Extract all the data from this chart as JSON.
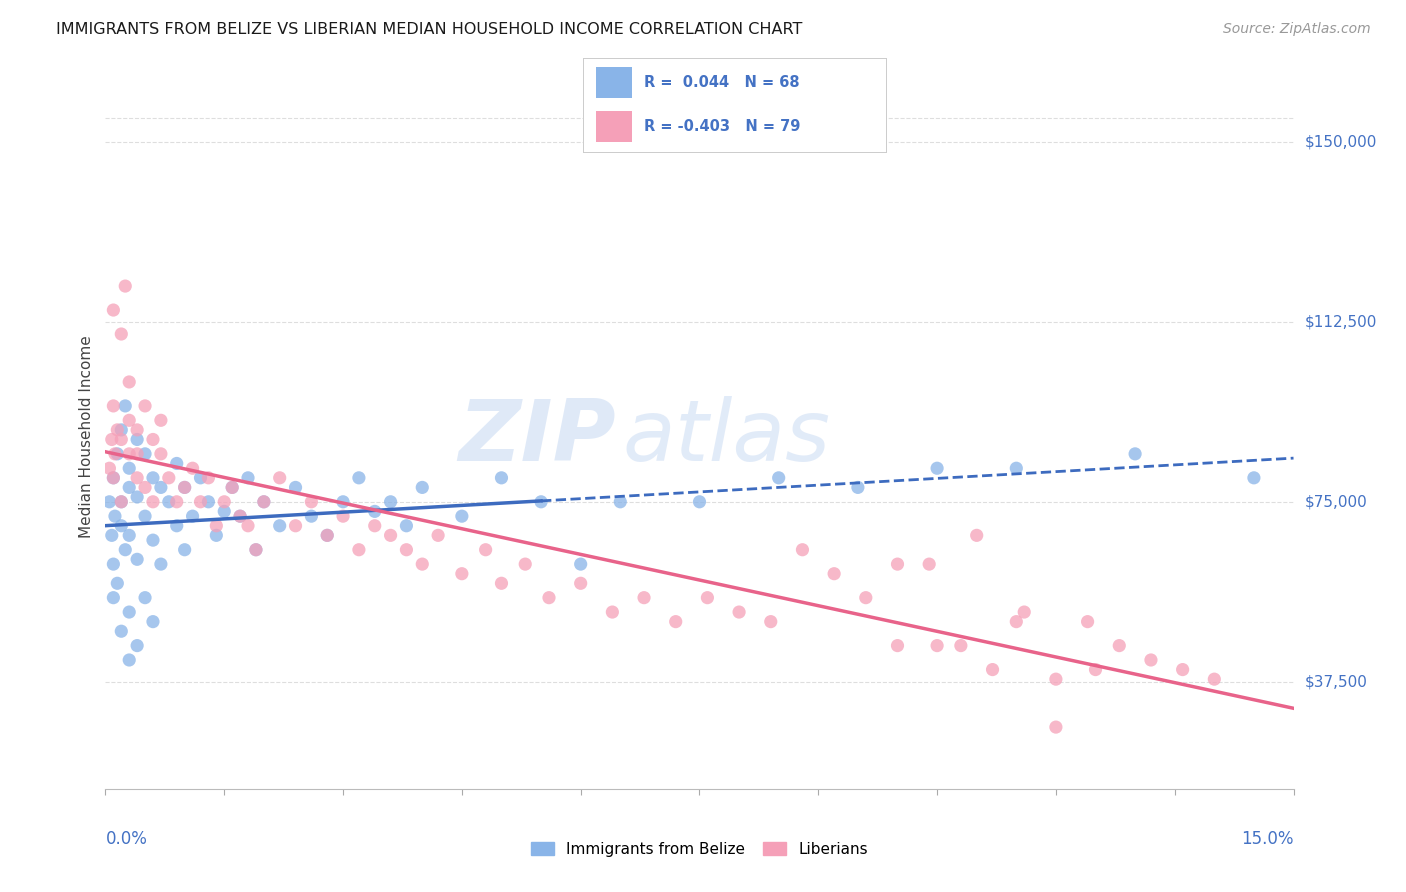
{
  "title": "IMMIGRANTS FROM BELIZE VS LIBERIAN MEDIAN HOUSEHOLD INCOME CORRELATION CHART",
  "source": "Source: ZipAtlas.com",
  "ylabel": "Median Household Income",
  "y_ticks": [
    37500,
    75000,
    112500,
    150000
  ],
  "y_tick_labels": [
    "$37,500",
    "$75,000",
    "$112,500",
    "$150,000"
  ],
  "x_min": 0.0,
  "x_max": 0.15,
  "y_min": 15000,
  "y_max": 162000,
  "watermark_zip": "ZIP",
  "watermark_atlas": "atlas",
  "color_blue_scatter": "#89B4E8",
  "color_pink_scatter": "#F5A0B8",
  "color_blue_line": "#3D6BBF",
  "color_pink_line": "#E8638A",
  "color_axis_text": "#4472C4",
  "color_grid": "#DEDEDE",
  "belize_r": 0.044,
  "belize_n": 68,
  "liberian_r": -0.403,
  "liberian_n": 79,
  "belize_x": [
    0.0005,
    0.0008,
    0.001,
    0.001,
    0.001,
    0.0012,
    0.0015,
    0.0015,
    0.002,
    0.002,
    0.002,
    0.002,
    0.0025,
    0.0025,
    0.003,
    0.003,
    0.003,
    0.003,
    0.003,
    0.004,
    0.004,
    0.004,
    0.004,
    0.005,
    0.005,
    0.005,
    0.006,
    0.006,
    0.006,
    0.007,
    0.007,
    0.008,
    0.009,
    0.009,
    0.01,
    0.01,
    0.011,
    0.012,
    0.013,
    0.014,
    0.015,
    0.016,
    0.017,
    0.018,
    0.019,
    0.02,
    0.022,
    0.024,
    0.026,
    0.028,
    0.03,
    0.032,
    0.034,
    0.036,
    0.038,
    0.04,
    0.045,
    0.05,
    0.055,
    0.06,
    0.065,
    0.075,
    0.085,
    0.095,
    0.105,
    0.115,
    0.13,
    0.145
  ],
  "belize_y": [
    75000,
    68000,
    80000,
    55000,
    62000,
    72000,
    85000,
    58000,
    90000,
    75000,
    70000,
    48000,
    95000,
    65000,
    82000,
    78000,
    68000,
    52000,
    42000,
    88000,
    76000,
    63000,
    45000,
    85000,
    72000,
    55000,
    80000,
    67000,
    50000,
    78000,
    62000,
    75000,
    83000,
    70000,
    78000,
    65000,
    72000,
    80000,
    75000,
    68000,
    73000,
    78000,
    72000,
    80000,
    65000,
    75000,
    70000,
    78000,
    72000,
    68000,
    75000,
    80000,
    73000,
    75000,
    70000,
    78000,
    72000,
    80000,
    75000,
    62000,
    75000,
    75000,
    80000,
    78000,
    82000,
    82000,
    85000,
    80000
  ],
  "liberian_x": [
    0.0005,
    0.0008,
    0.001,
    0.001,
    0.001,
    0.0012,
    0.0015,
    0.002,
    0.002,
    0.002,
    0.0025,
    0.003,
    0.003,
    0.003,
    0.004,
    0.004,
    0.004,
    0.005,
    0.005,
    0.006,
    0.006,
    0.007,
    0.007,
    0.008,
    0.009,
    0.01,
    0.011,
    0.012,
    0.013,
    0.014,
    0.015,
    0.016,
    0.017,
    0.018,
    0.019,
    0.02,
    0.022,
    0.024,
    0.026,
    0.028,
    0.03,
    0.032,
    0.034,
    0.036,
    0.038,
    0.04,
    0.042,
    0.045,
    0.048,
    0.05,
    0.053,
    0.056,
    0.06,
    0.064,
    0.068,
    0.072,
    0.076,
    0.08,
    0.084,
    0.088,
    0.092,
    0.096,
    0.1,
    0.104,
    0.108,
    0.112,
    0.116,
    0.12,
    0.124,
    0.128,
    0.132,
    0.136,
    0.14,
    0.1,
    0.105,
    0.11,
    0.115,
    0.12,
    0.125
  ],
  "liberian_y": [
    82000,
    88000,
    80000,
    95000,
    115000,
    85000,
    90000,
    88000,
    110000,
    75000,
    120000,
    92000,
    85000,
    100000,
    90000,
    80000,
    85000,
    95000,
    78000,
    88000,
    75000,
    85000,
    92000,
    80000,
    75000,
    78000,
    82000,
    75000,
    80000,
    70000,
    75000,
    78000,
    72000,
    70000,
    65000,
    75000,
    80000,
    70000,
    75000,
    68000,
    72000,
    65000,
    70000,
    68000,
    65000,
    62000,
    68000,
    60000,
    65000,
    58000,
    62000,
    55000,
    58000,
    52000,
    55000,
    50000,
    55000,
    52000,
    50000,
    65000,
    60000,
    55000,
    45000,
    62000,
    45000,
    40000,
    52000,
    38000,
    50000,
    45000,
    42000,
    40000,
    38000,
    62000,
    45000,
    68000,
    50000,
    28000,
    40000
  ]
}
